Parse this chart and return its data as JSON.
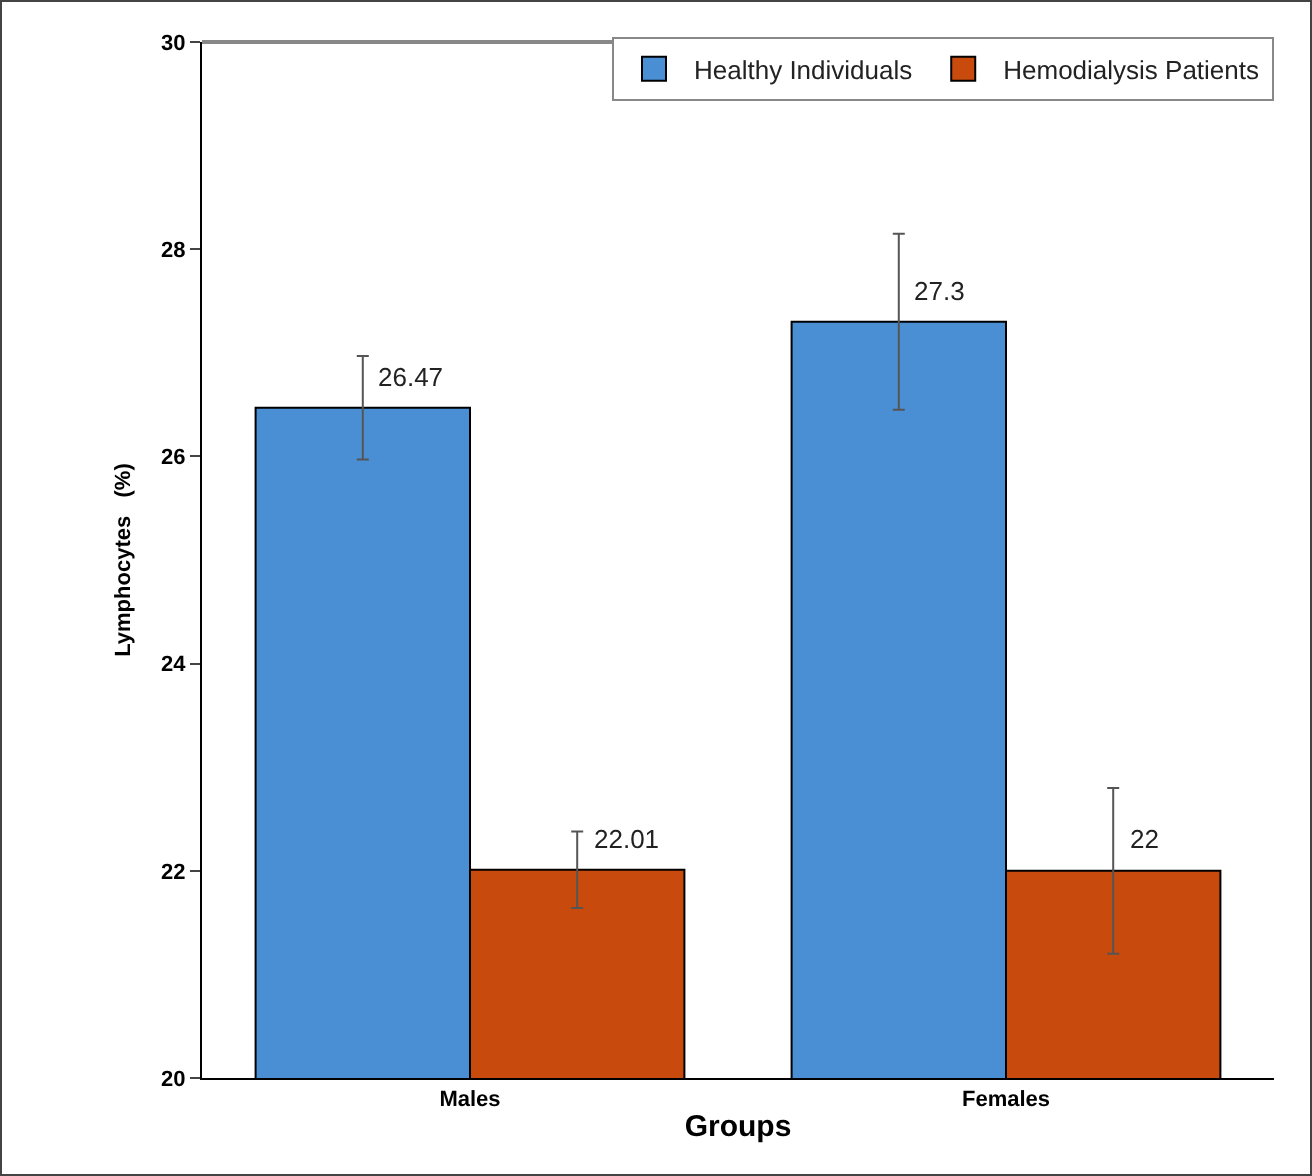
{
  "chart_data": {
    "type": "bar",
    "xlabel": "Groups",
    "ylabel": "Lymphocytes   (%)",
    "categories": [
      "Males",
      "Females"
    ],
    "series": [
      {
        "name": "Healthy Individuals",
        "color": "#4a8fd4",
        "values": [
          26.47,
          27.3
        ],
        "errors": [
          0.5,
          0.85
        ]
      },
      {
        "name": "Hemodialysis Patients",
        "color": "#c84a0c",
        "values": [
          22.01,
          22
        ],
        "errors": [
          0.37,
          0.8
        ]
      }
    ],
    "data_labels": true,
    "ylim": [
      20,
      30
    ],
    "yticks": [
      20,
      22,
      24,
      26,
      28,
      30
    ],
    "grid": false,
    "legend": "top right"
  }
}
